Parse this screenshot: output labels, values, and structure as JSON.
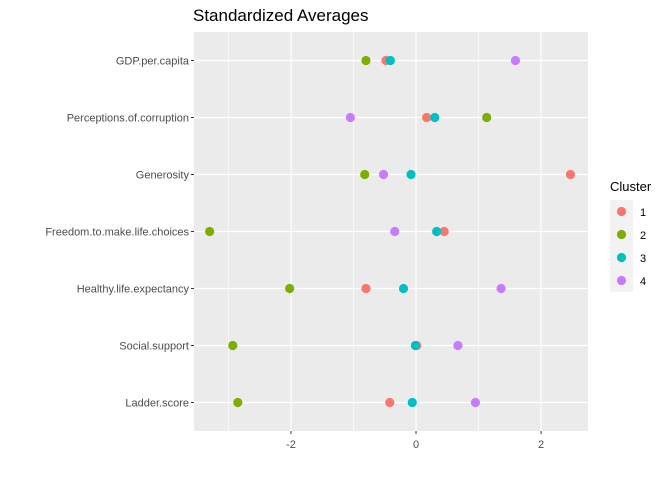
{
  "chart_data": {
    "type": "scatter",
    "title": "Standardized Averages",
    "xlabel": "",
    "ylabel": "",
    "xlim": [
      -3.55,
      2.75
    ],
    "x_ticks": [
      -2,
      0,
      2
    ],
    "x_tick_labels": [
      "-2",
      "0",
      "2"
    ],
    "categories": [
      "Ladder.score",
      "Social.support",
      "Healthy.life.expectancy",
      "Freedom.to.make.life.choices",
      "Generosity",
      "Perceptions.of.corruption",
      "GDP.per.capita"
    ],
    "grid": true,
    "legend": {
      "title": "Cluster",
      "position": "right"
    },
    "series": [
      {
        "name": "1",
        "color": "#F8766D",
        "values": [
          -0.42,
          0.01,
          -0.8,
          0.45,
          2.47,
          0.17,
          -0.48
        ]
      },
      {
        "name": "2",
        "color": "#7CAE00",
        "values": [
          -2.85,
          -2.93,
          -2.02,
          -3.3,
          -0.82,
          1.13,
          -0.8
        ]
      },
      {
        "name": "3",
        "color": "#00BFC4",
        "values": [
          -0.06,
          -0.01,
          -0.2,
          0.33,
          -0.08,
          0.3,
          -0.41
        ]
      },
      {
        "name": "4",
        "color": "#C77CFF",
        "values": [
          0.95,
          0.67,
          1.36,
          -0.34,
          -0.52,
          -1.05,
          1.59
        ]
      }
    ]
  }
}
